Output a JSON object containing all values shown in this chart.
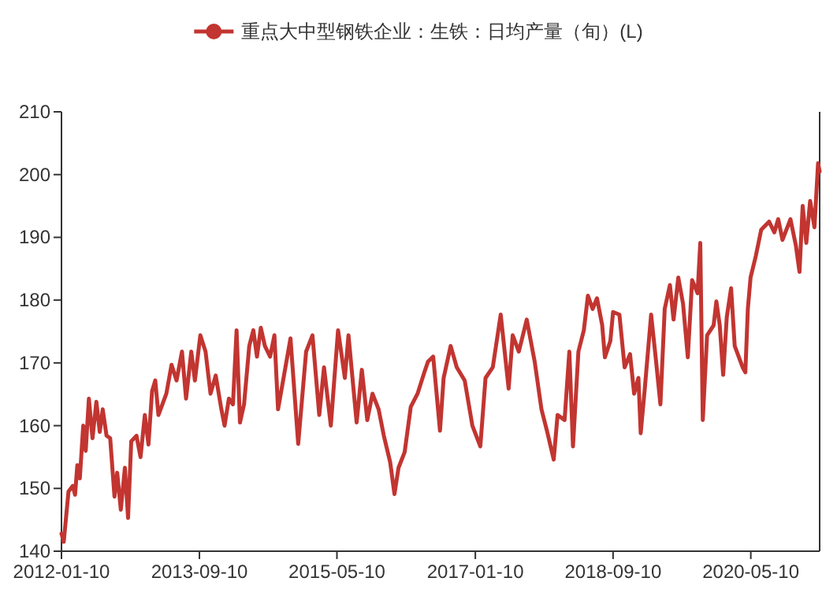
{
  "chart_data": {
    "type": "line",
    "legend": "top",
    "xlim": [
      "2012-01-10",
      "2021-03-10"
    ],
    "xticks": [
      "2012-01-10",
      "2013-09-10",
      "2015-05-10",
      "2017-01-10",
      "2018-09-10",
      "2020-05-10"
    ],
    "ylim": [
      140,
      210
    ],
    "yticks": [
      140,
      150,
      160,
      170,
      180,
      190,
      200,
      210
    ],
    "grid": false,
    "series": [
      {
        "name": "重点大中型钢铁企业：生铁：日均产量（旬）(L)",
        "color": "#c23531",
        "x": [
          "2012-01-10",
          "2012-01-20",
          "2012-02-10",
          "2012-02-29",
          "2012-03-10",
          "2012-03-20",
          "2012-03-31",
          "2012-04-15",
          "2012-04-26",
          "2012-05-10",
          "2012-05-26",
          "2012-06-12",
          "2012-06-27",
          "2012-07-10",
          "2012-07-27",
          "2012-08-12",
          "2012-08-31",
          "2012-09-12",
          "2012-09-28",
          "2012-10-16",
          "2012-10-30",
          "2012-11-13",
          "2012-12-06",
          "2012-12-24",
          "2013-01-12",
          "2013-01-28",
          "2013-02-13",
          "2013-02-27",
          "2013-03-13",
          "2013-04-17",
          "2013-05-10",
          "2013-06-01",
          "2013-06-25",
          "2013-07-13",
          "2013-08-05",
          "2013-08-21",
          "2013-09-14",
          "2013-10-07",
          "2013-10-29",
          "2013-11-21",
          "2013-12-14",
          "2013-12-30",
          "2014-01-18",
          "2014-02-05",
          "2014-02-21",
          "2014-03-08",
          "2014-03-26",
          "2014-04-18",
          "2014-05-06",
          "2014-05-22",
          "2014-06-08",
          "2014-06-26",
          "2014-07-19",
          "2014-08-07",
          "2014-08-23",
          "2014-10-17",
          "2014-11-20",
          "2014-12-25",
          "2015-01-22",
          "2015-02-21",
          "2015-03-14",
          "2015-04-13",
          "2015-05-15",
          "2015-06-14",
          "2015-06-30",
          "2015-08-05",
          "2015-08-28",
          "2015-09-21",
          "2015-10-14",
          "2015-11-10",
          "2015-12-03",
          "2015-12-31",
          "2016-01-19",
          "2016-02-06",
          "2016-03-04",
          "2016-03-31",
          "2016-04-30",
          "2016-05-30",
          "2016-06-15",
          "2016-07-08",
          "2016-08-07",
          "2016-08-23",
          "2016-09-23",
          "2016-10-20",
          "2016-11-24",
          "2016-12-28",
          "2017-02-01",
          "2017-02-24",
          "2017-03-28",
          "2017-05-02",
          "2017-06-06",
          "2017-06-24",
          "2017-07-21",
          "2017-08-25",
          "2017-09-29",
          "2017-10-29",
          "2017-11-22",
          "2017-12-22",
          "2018-01-08",
          "2018-02-08",
          "2018-03-01",
          "2018-03-17",
          "2018-04-10",
          "2018-05-04",
          "2018-05-22",
          "2018-06-12",
          "2018-07-01",
          "2018-07-24",
          "2018-08-05",
          "2018-08-29",
          "2018-09-10",
          "2018-10-08",
          "2018-10-31",
          "2018-11-24",
          "2018-12-12",
          "2018-12-31",
          "2019-01-10",
          "2019-01-28",
          "2019-02-25",
          "2019-03-19",
          "2019-04-07",
          "2019-04-26",
          "2019-05-19",
          "2019-06-04",
          "2019-06-25",
          "2019-07-16",
          "2019-08-06",
          "2019-08-25",
          "2019-09-18",
          "2019-09-30",
          "2019-10-11",
          "2019-10-30",
          "2019-11-28",
          "2019-12-10",
          "2019-12-25",
          "2020-01-09",
          "2020-01-25",
          "2020-02-13",
          "2020-02-29",
          "2020-04-04",
          "2020-04-16",
          "2020-04-27",
          "2020-05-09",
          "2020-06-01",
          "2020-06-25",
          "2020-07-30",
          "2020-08-22",
          "2020-09-08",
          "2020-09-27",
          "2020-11-01",
          "2020-11-25",
          "2020-12-11",
          "2020-12-25",
          "2021-01-10",
          "2021-01-27",
          "2021-02-15",
          "2021-03-03",
          "2021-03-10"
        ],
        "values": [
          142.8,
          141.5,
          149.5,
          150.4,
          149,
          153.7,
          151.6,
          160,
          156,
          164.3,
          158,
          163.8,
          159,
          162.6,
          158.4,
          158,
          148.7,
          152.5,
          146.6,
          153.3,
          145.3,
          157.5,
          158.4,
          155,
          161.7,
          157,
          165.5,
          167.2,
          161.7,
          165.1,
          169.7,
          167.2,
          171.8,
          164.3,
          171.8,
          167.2,
          174.4,
          171.8,
          165.1,
          168,
          163,
          160,
          164.3,
          163.4,
          175.2,
          160.5,
          163.4,
          172.7,
          175.2,
          171,
          175.6,
          172.7,
          171,
          174.4,
          162.6,
          173.9,
          157.1,
          171.8,
          174.4,
          161.7,
          169.3,
          160,
          175.2,
          167.6,
          174.4,
          160.5,
          168.9,
          160.9,
          165.1,
          162.6,
          158.4,
          154.2,
          149.1,
          153.3,
          155.8,
          163,
          165.1,
          168.5,
          170.2,
          171,
          159.2,
          167.6,
          172.7,
          169.3,
          167.2,
          160,
          156.7,
          167.6,
          169.3,
          177.7,
          165.9,
          174.4,
          171.8,
          176.9,
          170.2,
          162.6,
          159.2,
          154.6,
          161.7,
          160.9,
          171.8,
          156.7,
          171.8,
          175.2,
          180.7,
          178.6,
          180.3,
          176,
          170.9,
          173.5,
          178.1,
          177.7,
          169.3,
          171.4,
          165.1,
          167.6,
          158.8,
          165.9,
          177.7,
          170.2,
          163.4,
          178.6,
          182.4,
          176.9,
          183.6,
          179.4,
          170.9,
          183.2,
          181.1,
          189.1,
          160.9,
          174.4,
          176,
          179.8,
          176,
          168.1,
          177.3,
          181.9,
          172.7,
          169.3,
          168.5,
          178.6,
          183.6,
          187,
          191.2,
          192.5,
          190.8,
          192.9,
          189.6,
          192.9,
          188.7,
          184.5,
          195,
          189.1,
          195.8,
          191.6,
          201.8,
          200.5
        ]
      }
    ]
  }
}
